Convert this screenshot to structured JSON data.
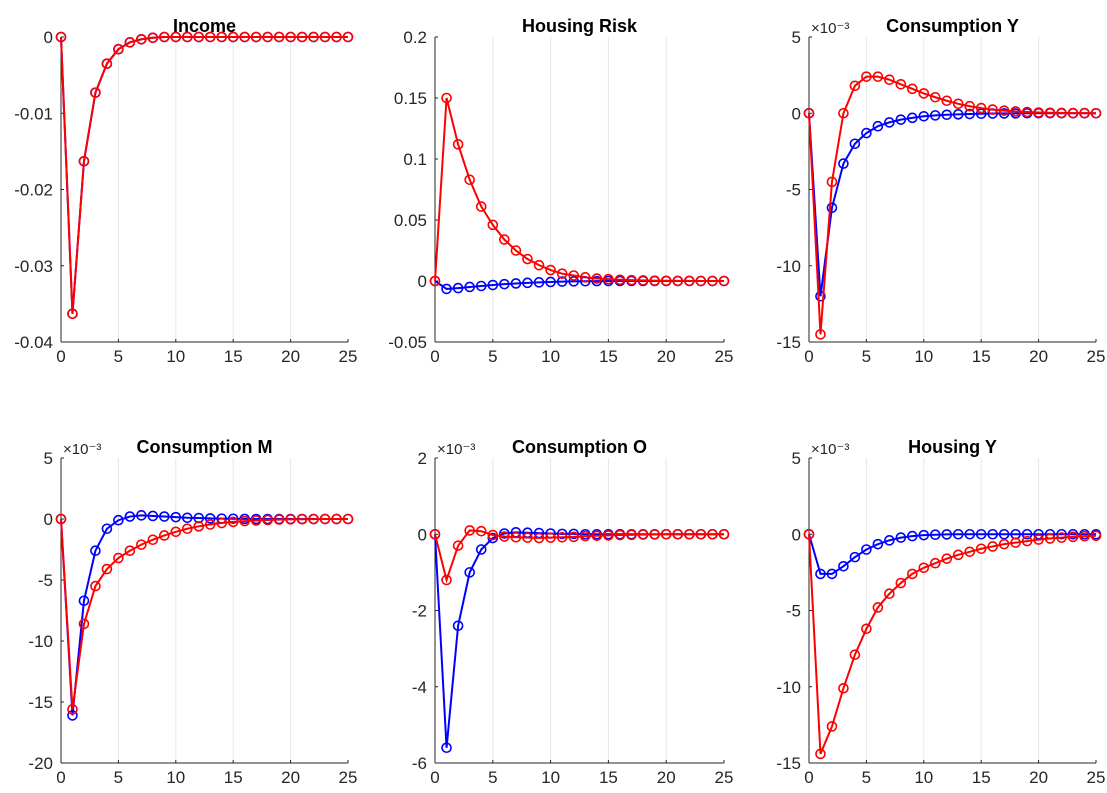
{
  "figure": {
    "background": "#ffffff",
    "series_colors": [
      "#0000ff",
      "#ff0000"
    ]
  },
  "chart_data": [
    {
      "type": "line",
      "title": "Income",
      "xlabel": "",
      "ylabel": "",
      "xlim": [
        0,
        25
      ],
      "ylim": [
        -0.04,
        0
      ],
      "xticks": [
        0,
        5,
        10,
        15,
        20,
        25
      ],
      "yticks": [
        0,
        -0.01,
        -0.02,
        -0.03,
        -0.04
      ],
      "ytick_labels": [
        "0",
        "-0.01",
        "-0.02",
        "-0.03",
        "-0.04"
      ],
      "exponent_label": "",
      "grid": "vertical",
      "marker": "circle",
      "x": [
        0,
        1,
        2,
        3,
        4,
        5,
        6,
        7,
        8,
        9,
        10,
        11,
        12,
        13,
        14,
        15,
        16,
        17,
        18,
        19,
        20,
        21,
        22,
        23,
        24,
        25
      ],
      "series": [
        {
          "color": "#0000ff",
          "values": [
            0,
            -0.0363,
            -0.0163,
            -0.0073,
            -0.0035,
            -0.0016,
            -0.0007,
            -0.0003,
            -0.0001,
            0,
            0,
            0,
            0,
            0,
            0,
            0,
            0,
            0,
            0,
            0,
            0,
            0,
            0,
            0,
            0,
            0
          ]
        },
        {
          "color": "#ff0000",
          "values": [
            0,
            -0.0363,
            -0.0163,
            -0.0073,
            -0.0035,
            -0.0016,
            -0.0007,
            -0.0003,
            -0.0001,
            0,
            0,
            0,
            0,
            0,
            0,
            0,
            0,
            0,
            0,
            0,
            0,
            0,
            0,
            0,
            0,
            0
          ]
        }
      ]
    },
    {
      "type": "line",
      "title": "Housing Risk",
      "xlabel": "",
      "ylabel": "",
      "xlim": [
        0,
        25
      ],
      "ylim": [
        -0.05,
        0.2
      ],
      "xticks": [
        0,
        5,
        10,
        15,
        20,
        25
      ],
      "yticks": [
        0.2,
        0.15,
        0.1,
        0.05,
        0,
        -0.05
      ],
      "ytick_labels": [
        "0.2",
        "0.15",
        "0.1",
        "0.05",
        "0",
        "-0.05"
      ],
      "exponent_label": "",
      "grid": "vertical",
      "marker": "circle",
      "x": [
        0,
        1,
        2,
        3,
        4,
        5,
        6,
        7,
        8,
        9,
        10,
        11,
        12,
        13,
        14,
        15,
        16,
        17,
        18,
        19,
        20,
        21,
        22,
        23,
        24,
        25
      ],
      "series": [
        {
          "color": "#0000ff",
          "values": [
            0,
            -0.0065,
            -0.0058,
            -0.0049,
            -0.0041,
            -0.0033,
            -0.0026,
            -0.002,
            -0.0015,
            -0.0011,
            -0.0008,
            -0.0005,
            -0.0003,
            -0.0002,
            -0.0001,
            0,
            0,
            0,
            0,
            0,
            0,
            0,
            0,
            0,
            0,
            0
          ]
        },
        {
          "color": "#ff0000",
          "values": [
            0,
            0.15,
            0.112,
            0.083,
            0.061,
            0.046,
            0.034,
            0.025,
            0.018,
            0.013,
            0.009,
            0.006,
            0.0045,
            0.003,
            0.002,
            0.0015,
            0.001,
            0.0007,
            0.0005,
            0.0003,
            0.0002,
            0.0001,
            0.0001,
            0,
            0,
            0
          ]
        }
      ]
    },
    {
      "type": "line",
      "title": "Consumption Y",
      "xlabel": "",
      "ylabel": "",
      "xlim": [
        0,
        25
      ],
      "ylim": [
        -15,
        5
      ],
      "xticks": [
        0,
        5,
        10,
        15,
        20,
        25
      ],
      "yticks": [
        5,
        0,
        -5,
        -10,
        -15
      ],
      "ytick_labels": [
        "5",
        "0",
        "-5",
        "-10",
        "-15"
      ],
      "exponent_label": "×10⁻³",
      "grid": "vertical",
      "marker": "circle",
      "x": [
        0,
        1,
        2,
        3,
        4,
        5,
        6,
        7,
        8,
        9,
        10,
        11,
        12,
        13,
        14,
        15,
        16,
        17,
        18,
        19,
        20,
        21,
        22,
        23,
        24,
        25
      ],
      "series": [
        {
          "color": "#0000ff",
          "values": [
            0,
            -12,
            -6.2,
            -3.3,
            -2.0,
            -1.3,
            -0.85,
            -0.6,
            -0.42,
            -0.3,
            -0.2,
            -0.14,
            -0.1,
            -0.07,
            -0.05,
            -0.03,
            -0.02,
            -0.01,
            -0.01,
            0,
            0,
            0,
            0,
            0,
            0,
            0
          ]
        },
        {
          "color": "#ff0000",
          "values": [
            0,
            -14.5,
            -4.5,
            0,
            1.8,
            2.4,
            2.4,
            2.2,
            1.9,
            1.6,
            1.3,
            1.05,
            0.82,
            0.62,
            0.46,
            0.34,
            0.24,
            0.17,
            0.12,
            0.08,
            0.05,
            0.03,
            0.02,
            0.01,
            0.01,
            0
          ]
        }
      ]
    },
    {
      "type": "line",
      "title": "Consumption M",
      "xlabel": "",
      "ylabel": "",
      "xlim": [
        0,
        25
      ],
      "ylim": [
        -20,
        5
      ],
      "xticks": [
        0,
        5,
        10,
        15,
        20,
        25
      ],
      "yticks": [
        5,
        0,
        -5,
        -10,
        -15,
        -20
      ],
      "ytick_labels": [
        "5",
        "0",
        "-5",
        "-10",
        "-15",
        "-20"
      ],
      "exponent_label": "×10⁻³",
      "grid": "vertical",
      "marker": "circle",
      "x": [
        0,
        1,
        2,
        3,
        4,
        5,
        6,
        7,
        8,
        9,
        10,
        11,
        12,
        13,
        14,
        15,
        16,
        17,
        18,
        19,
        20,
        21,
        22,
        23,
        24,
        25
      ],
      "series": [
        {
          "color": "#0000ff",
          "values": [
            0,
            -16.1,
            -6.7,
            -2.6,
            -0.8,
            -0.1,
            0.2,
            0.3,
            0.25,
            0.2,
            0.15,
            0.1,
            0.08,
            0.05,
            0.03,
            0.02,
            0.01,
            0,
            0,
            0,
            0,
            0,
            0,
            0,
            0,
            0
          ]
        },
        {
          "color": "#ff0000",
          "values": [
            0,
            -15.6,
            -8.6,
            -5.5,
            -4.1,
            -3.2,
            -2.6,
            -2.1,
            -1.7,
            -1.35,
            -1.05,
            -0.8,
            -0.6,
            -0.45,
            -0.33,
            -0.24,
            -0.17,
            -0.12,
            -0.08,
            -0.05,
            -0.03,
            -0.02,
            -0.01,
            0,
            0,
            0
          ]
        }
      ]
    },
    {
      "type": "line",
      "title": "Consumption O",
      "xlabel": "",
      "ylabel": "",
      "xlim": [
        0,
        25
      ],
      "ylim": [
        -6,
        2
      ],
      "xticks": [
        0,
        5,
        10,
        15,
        20,
        25
      ],
      "yticks": [
        2,
        0,
        -2,
        -4,
        -6
      ],
      "ytick_labels": [
        "2",
        "0",
        "-2",
        "-4",
        "-6"
      ],
      "exponent_label": "×10⁻³",
      "grid": "vertical",
      "marker": "circle",
      "x": [
        0,
        1,
        2,
        3,
        4,
        5,
        6,
        7,
        8,
        9,
        10,
        11,
        12,
        13,
        14,
        15,
        16,
        17,
        18,
        19,
        20,
        21,
        22,
        23,
        24,
        25
      ],
      "series": [
        {
          "color": "#0000ff",
          "values": [
            0,
            -5.6,
            -2.4,
            -1.0,
            -0.4,
            -0.1,
            0.02,
            0.05,
            0.04,
            0.03,
            0.02,
            0.01,
            0.01,
            0,
            0,
            0,
            0,
            0,
            0,
            0,
            0,
            0,
            0,
            0,
            0,
            0
          ]
        },
        {
          "color": "#ff0000",
          "values": [
            0,
            -1.2,
            -0.3,
            0.1,
            0.08,
            -0.02,
            -0.06,
            -0.08,
            -0.09,
            -0.1,
            -0.09,
            -0.08,
            -0.07,
            -0.05,
            -0.04,
            -0.03,
            -0.02,
            -0.015,
            -0.01,
            -0.005,
            0,
            0,
            0,
            0,
            0,
            0
          ]
        }
      ]
    },
    {
      "type": "line",
      "title": "Housing Y",
      "xlabel": "",
      "ylabel": "",
      "xlim": [
        0,
        25
      ],
      "ylim": [
        -15,
        5
      ],
      "xticks": [
        0,
        5,
        10,
        15,
        20,
        25
      ],
      "yticks": [
        5,
        0,
        -5,
        -10,
        -15
      ],
      "ytick_labels": [
        "5",
        "0",
        "-5",
        "-10",
        "-15"
      ],
      "exponent_label": "×10⁻³",
      "grid": "vertical",
      "marker": "circle",
      "x": [
        0,
        1,
        2,
        3,
        4,
        5,
        6,
        7,
        8,
        9,
        10,
        11,
        12,
        13,
        14,
        15,
        16,
        17,
        18,
        19,
        20,
        21,
        22,
        23,
        24,
        25
      ],
      "series": [
        {
          "color": "#0000ff",
          "values": [
            0,
            -2.6,
            -2.6,
            -2.1,
            -1.5,
            -1.0,
            -0.65,
            -0.4,
            -0.22,
            -0.12,
            -0.06,
            -0.03,
            -0.01,
            0,
            0,
            0,
            0,
            0,
            0,
            0,
            0,
            0,
            0,
            0,
            0,
            0
          ]
        },
        {
          "color": "#ff0000",
          "values": [
            0,
            -14.4,
            -12.6,
            -10.1,
            -7.9,
            -6.2,
            -4.8,
            -3.9,
            -3.2,
            -2.6,
            -2.2,
            -1.9,
            -1.6,
            -1.35,
            -1.15,
            -0.95,
            -0.8,
            -0.65,
            -0.55,
            -0.45,
            -0.35,
            -0.28,
            -0.22,
            -0.17,
            -0.13,
            -0.1
          ]
        }
      ]
    }
  ]
}
